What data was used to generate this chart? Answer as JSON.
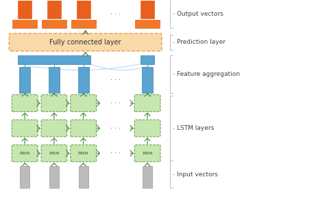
{
  "fig_width": 4.61,
  "fig_height": 3.0,
  "dpi": 100,
  "bg_color": "#ffffff",
  "orange_dark": "#E8601C",
  "orange_mid": "#F07828",
  "blue_color": "#5BA3D0",
  "blue_dark": "#3A80B0",
  "green_fill": "#C8E6B0",
  "green_border": "#5A9A40",
  "gray_fill": "#BBBBBB",
  "gray_border": "#999999",
  "fc_fill": "#FAD9A8",
  "fc_border": "#E8A050",
  "arrow_color": "#3A8A30",
  "dot_color": "#444444",
  "label_color": "#444444",
  "bracket_color": "#BBBBBB",
  "labels": [
    "Output vectors",
    "Prediction layer",
    "Feature aggregation",
    "LSTM layers",
    "Input vectors"
  ]
}
